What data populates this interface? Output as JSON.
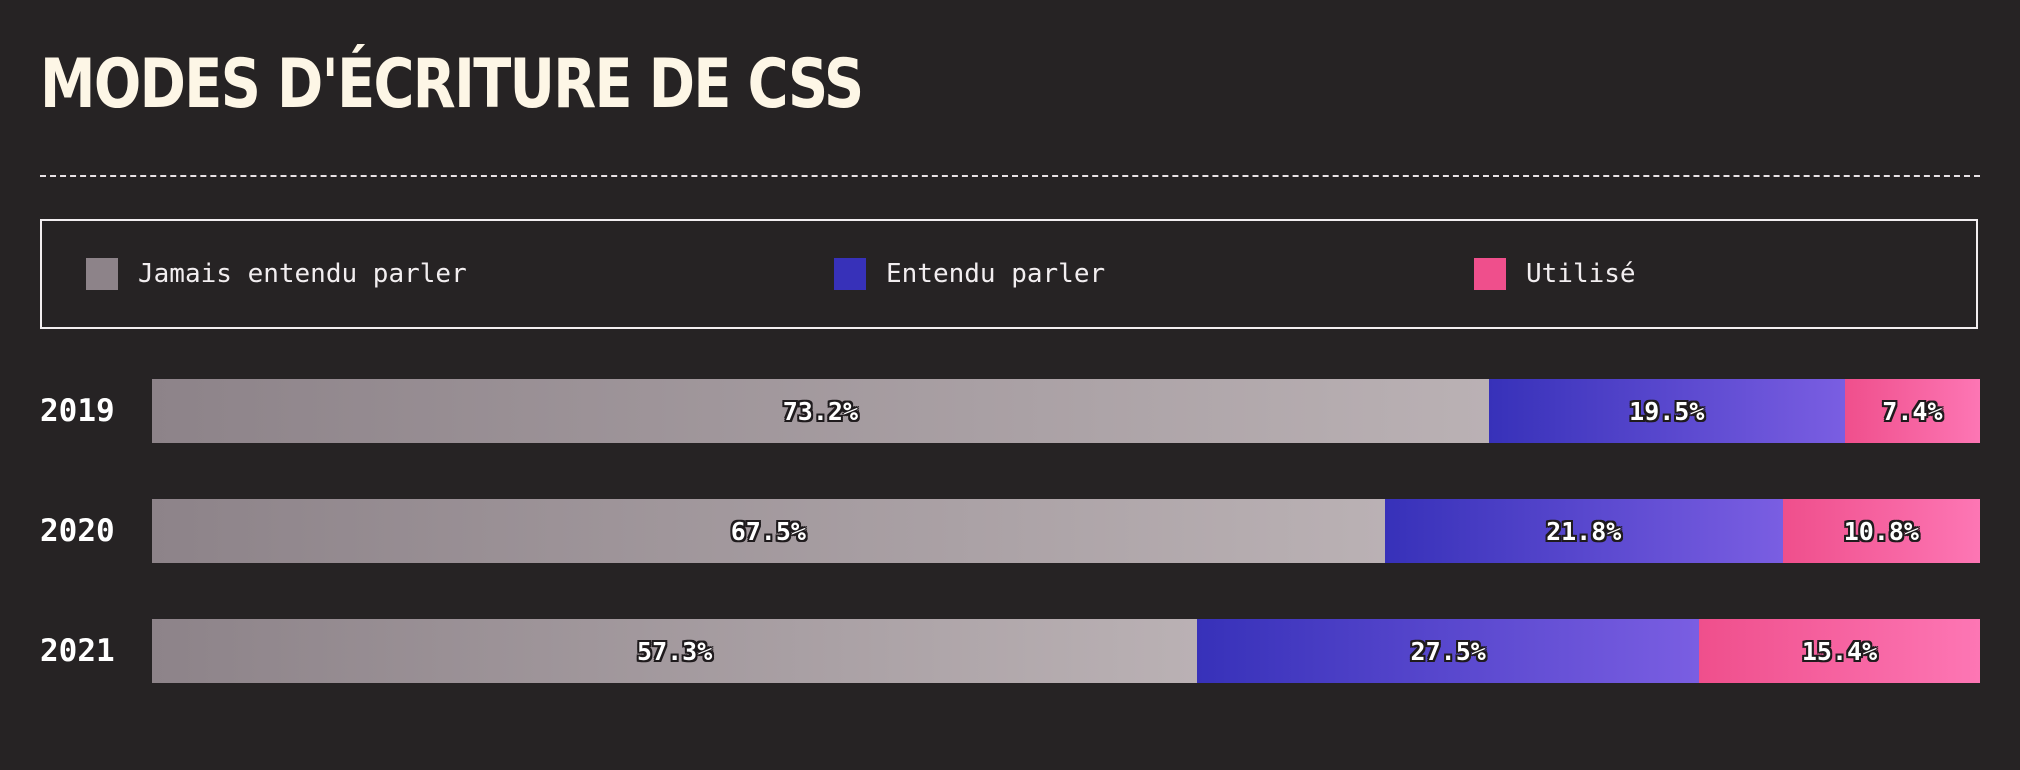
{
  "chart_data": {
    "type": "bar",
    "orientation": "horizontal",
    "stacked": true,
    "normalized": true,
    "title": "MODES D'ÉCRITURE DE CSS",
    "categories": [
      "2019",
      "2020",
      "2021"
    ],
    "series": [
      {
        "name": "Jamais entendu parler",
        "color": "#8d8389",
        "values": [
          73.2,
          67.5,
          57.3
        ],
        "labels": [
          "73.2%",
          "67.5%",
          "57.3%"
        ]
      },
      {
        "name": "Entendu parler",
        "color": "#3731b9",
        "values": [
          19.5,
          21.8,
          27.5
        ],
        "labels": [
          "19.5%",
          "21.8%",
          "27.5%"
        ]
      },
      {
        "name": "Utilisé",
        "color": "#ef4f8c",
        "values": [
          7.4,
          10.8,
          15.4
        ],
        "labels": [
          "7.4%",
          "10.8%",
          "15.4%"
        ]
      }
    ],
    "unit": "%",
    "legend_position": "top",
    "grid": false
  }
}
